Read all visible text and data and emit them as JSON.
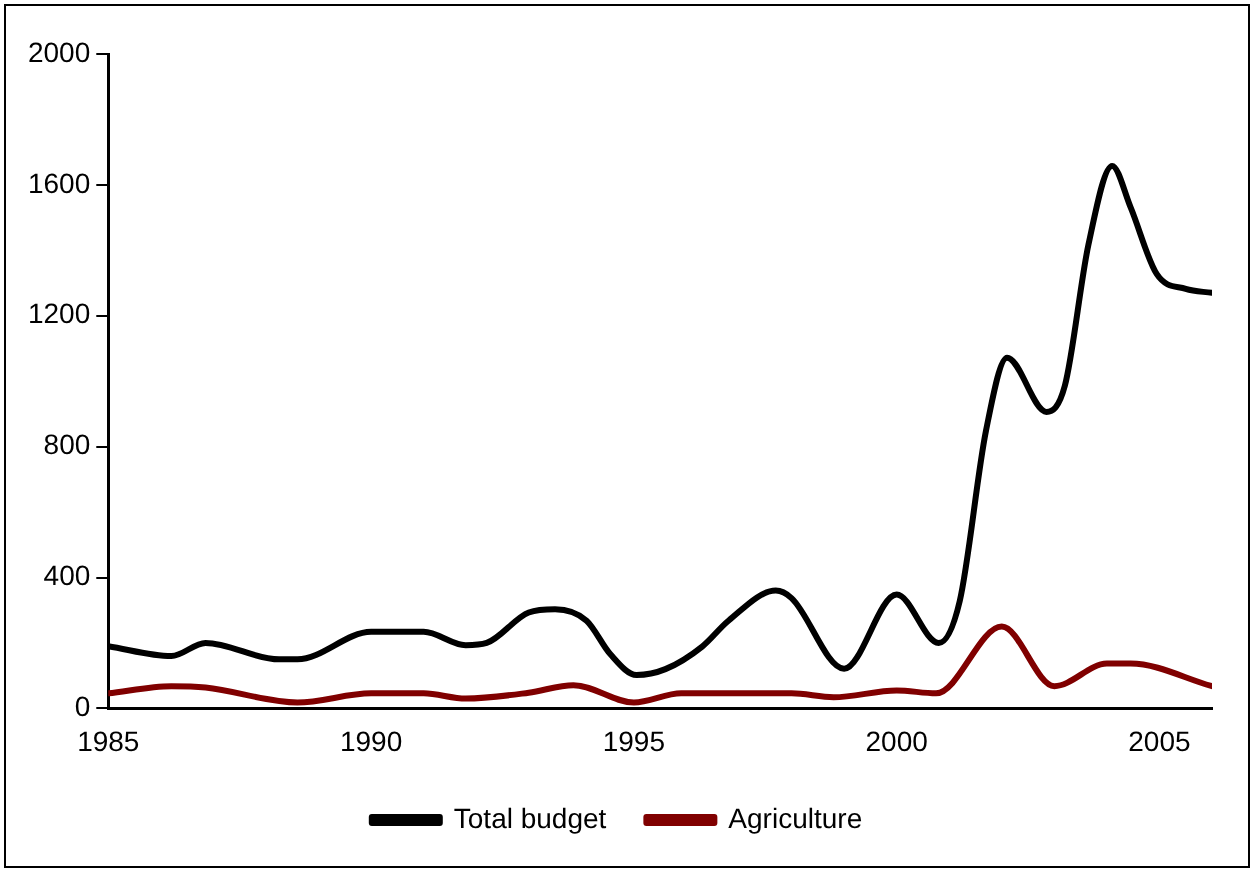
{
  "chart_data": {
    "type": "line",
    "xlim": [
      1985,
      2006
    ],
    "xticks": [
      1985,
      1990,
      1995,
      2000,
      2005
    ],
    "ylim": [
      0,
      2000
    ],
    "yticks": [
      0,
      400,
      800,
      1200,
      1600,
      2000
    ],
    "grid": false,
    "legend": "bottom",
    "marker": "none",
    "series": [
      {
        "name": "Total budget",
        "color": "#000000",
        "x": [
          1985,
          1986.2,
          1986.85,
          1988.25,
          1988.6,
          1990,
          1991,
          1991.8,
          1992.2,
          1993,
          1993.5,
          1994.1,
          1994.55,
          1995.05,
          1995.6,
          1996.3,
          1996.8,
          1997.7,
          1998,
          1999,
          2000,
          2000.8,
          2001.2,
          2001.7,
          2002.1,
          2002.85,
          2003.2,
          2003.65,
          2004.1,
          2004.45,
          2004.95,
          2005.5,
          2006
        ],
        "values": [
          190,
          160,
          200,
          150,
          150,
          234,
          234,
          193,
          200,
          293,
          303,
          268,
          166,
          102,
          120,
          189,
          268,
          360,
          337,
          121,
          348,
          200,
          328,
          849,
          1072,
          906,
          986,
          1418,
          1658,
          1532,
          1327,
          1282,
          1270
        ]
      },
      {
        "name": "Agriculture",
        "color": "#800000",
        "x": [
          1985,
          1986.2,
          1986.85,
          1988.6,
          1990,
          1991,
          1991.8,
          1993,
          1993.85,
          1995,
          1995.9,
          1998,
          1998.8,
          2000,
          2000.75,
          2002,
          2003,
          2004,
          2004.45,
          2006
        ],
        "values": [
          46,
          68,
          64,
          18,
          46,
          46,
          30,
          48,
          71,
          18,
          46,
          46,
          34,
          55,
          46,
          250,
          68,
          137,
          137,
          68
        ]
      }
    ]
  }
}
